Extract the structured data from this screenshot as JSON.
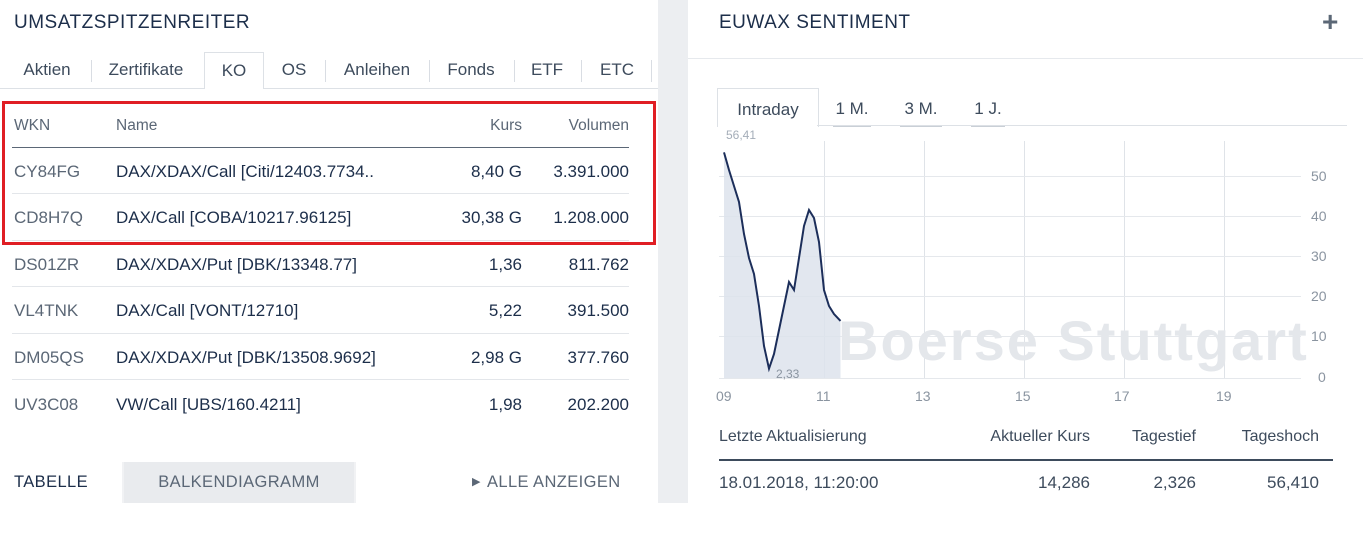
{
  "left": {
    "title": "UMSATZSPITZENREITER",
    "tabs": [
      "Aktien",
      "Zertifikate",
      "KO",
      "OS",
      "Anleihen",
      "Fonds",
      "ETF",
      "ETC"
    ],
    "active_tab": "KO",
    "columns": [
      "WKN",
      "Name",
      "Kurs",
      "Volumen"
    ],
    "rows": [
      {
        "wkn": "CY84FG",
        "name": "DAX/XDAX/Call [Citi/12403.7734..",
        "kurs": "8,40 G",
        "volumen": "3.391.000"
      },
      {
        "wkn": "CD8H7Q",
        "name": "DAX/Call [COBA/10217.96125]",
        "kurs": "30,38 G",
        "volumen": "1.208.000"
      },
      {
        "wkn": "DS01ZR",
        "name": "DAX/XDAX/Put [DBK/13348.77]",
        "kurs": "1,36",
        "volumen": "811.762"
      },
      {
        "wkn": "VL4TNK",
        "name": "DAX/Call [VONT/12710]",
        "kurs": "5,22",
        "volumen": "391.500"
      },
      {
        "wkn": "DM05QS",
        "name": "DAX/XDAX/Put [DBK/13508.9692]",
        "kurs": "2,98 G",
        "volumen": "377.760"
      },
      {
        "wkn": "UV3C08",
        "name": "VW/Call [UBS/160.4211]",
        "kurs": "1,98",
        "volumen": "202.200"
      }
    ],
    "bottom": {
      "table": "TABELLE",
      "bar": "BALKENDIAGRAMM",
      "all": "ALLE ANZEIGEN",
      "all_icon": "play-icon"
    }
  },
  "right": {
    "title": "EUWAX SENTIMENT",
    "expand_icon": "plus-icon",
    "tabs": [
      "Intraday",
      "1 M.",
      "3 M.",
      "1 J."
    ],
    "active_tab": "Intraday",
    "chart": {
      "max_label": "56,41",
      "min_label": "2,33",
      "y_ticks": [
        "50",
        "40",
        "30",
        "20",
        "10",
        "0"
      ],
      "x_ticks": [
        "09",
        "11",
        "13",
        "15",
        "17",
        "19"
      ],
      "watermark": "Boerse Stuttgart",
      "line_color": "#1c2e5a",
      "area_color": "#dde3ec"
    },
    "info": {
      "headers": [
        "Letzte Aktualisierung",
        "Aktueller Kurs",
        "Tagestief",
        "Tageshoch"
      ],
      "values": [
        "18.01.2018, 11:20:00",
        "14,286",
        "2,326",
        "56,410"
      ]
    }
  },
  "chart_data": {
    "type": "line",
    "title": "EUWAX SENTIMENT",
    "x_ticks": [
      "09",
      "11",
      "13",
      "15",
      "17",
      "19"
    ],
    "ylim": [
      0,
      56.41
    ],
    "series": [
      {
        "x": [
          9.0,
          9.1,
          9.2,
          9.3,
          9.4,
          9.5,
          9.6,
          9.7,
          9.8,
          9.9,
          10.0,
          10.1,
          10.2,
          10.3,
          10.4,
          10.5,
          10.6,
          10.7,
          10.8,
          10.9,
          11.0,
          11.1,
          11.2,
          11.33
        ],
        "y": [
          56.41,
          52,
          48,
          44,
          36,
          30,
          26,
          18,
          8,
          2.33,
          6,
          12,
          18,
          24,
          22,
          30,
          38,
          42,
          40,
          34,
          22,
          18,
          16,
          14.286
        ]
      }
    ]
  }
}
